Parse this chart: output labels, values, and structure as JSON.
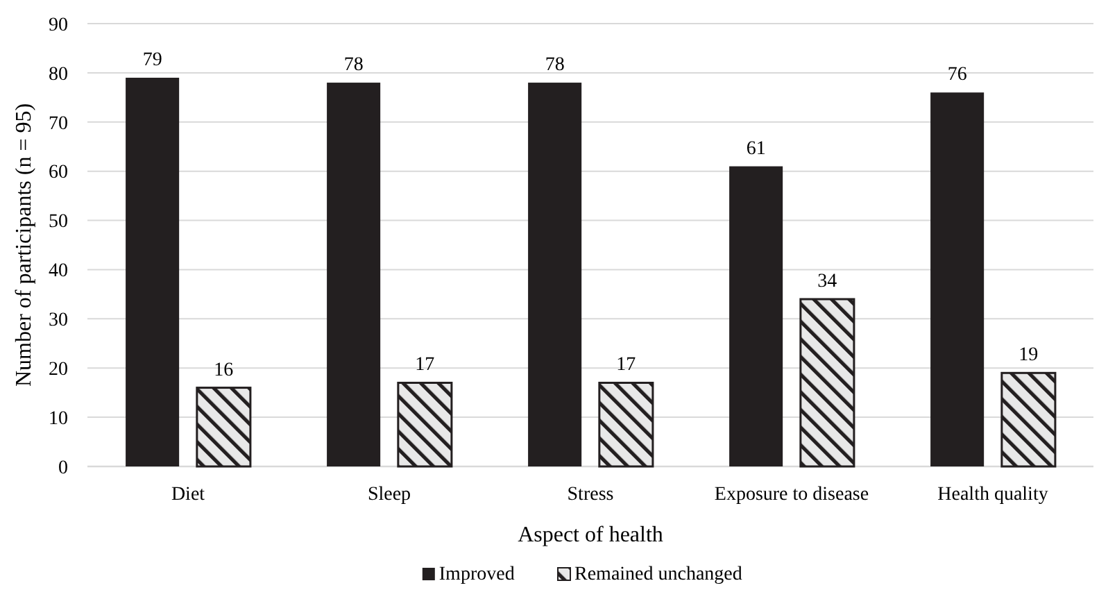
{
  "chart_data": {
    "type": "bar",
    "xlabel": "Aspect of health",
    "ylabel": "Number of participants (n = 95)",
    "categories": [
      "Diet",
      "Sleep",
      "Stress",
      "Exposure to disease",
      "Health quality"
    ],
    "series": [
      {
        "name": "Improved",
        "color": "#231f20",
        "values": [
          79,
          78,
          78,
          61,
          76
        ]
      },
      {
        "name": "Remained unchanged",
        "color": "#231f20",
        "values": [
          16,
          17,
          17,
          34,
          19
        ]
      }
    ],
    "ylim": [
      0,
      90
    ],
    "yticks": [
      0,
      10,
      20,
      30,
      40,
      50,
      60,
      70,
      80,
      90
    ],
    "grid": "y",
    "legend": "bottom",
    "data_labels": true
  }
}
